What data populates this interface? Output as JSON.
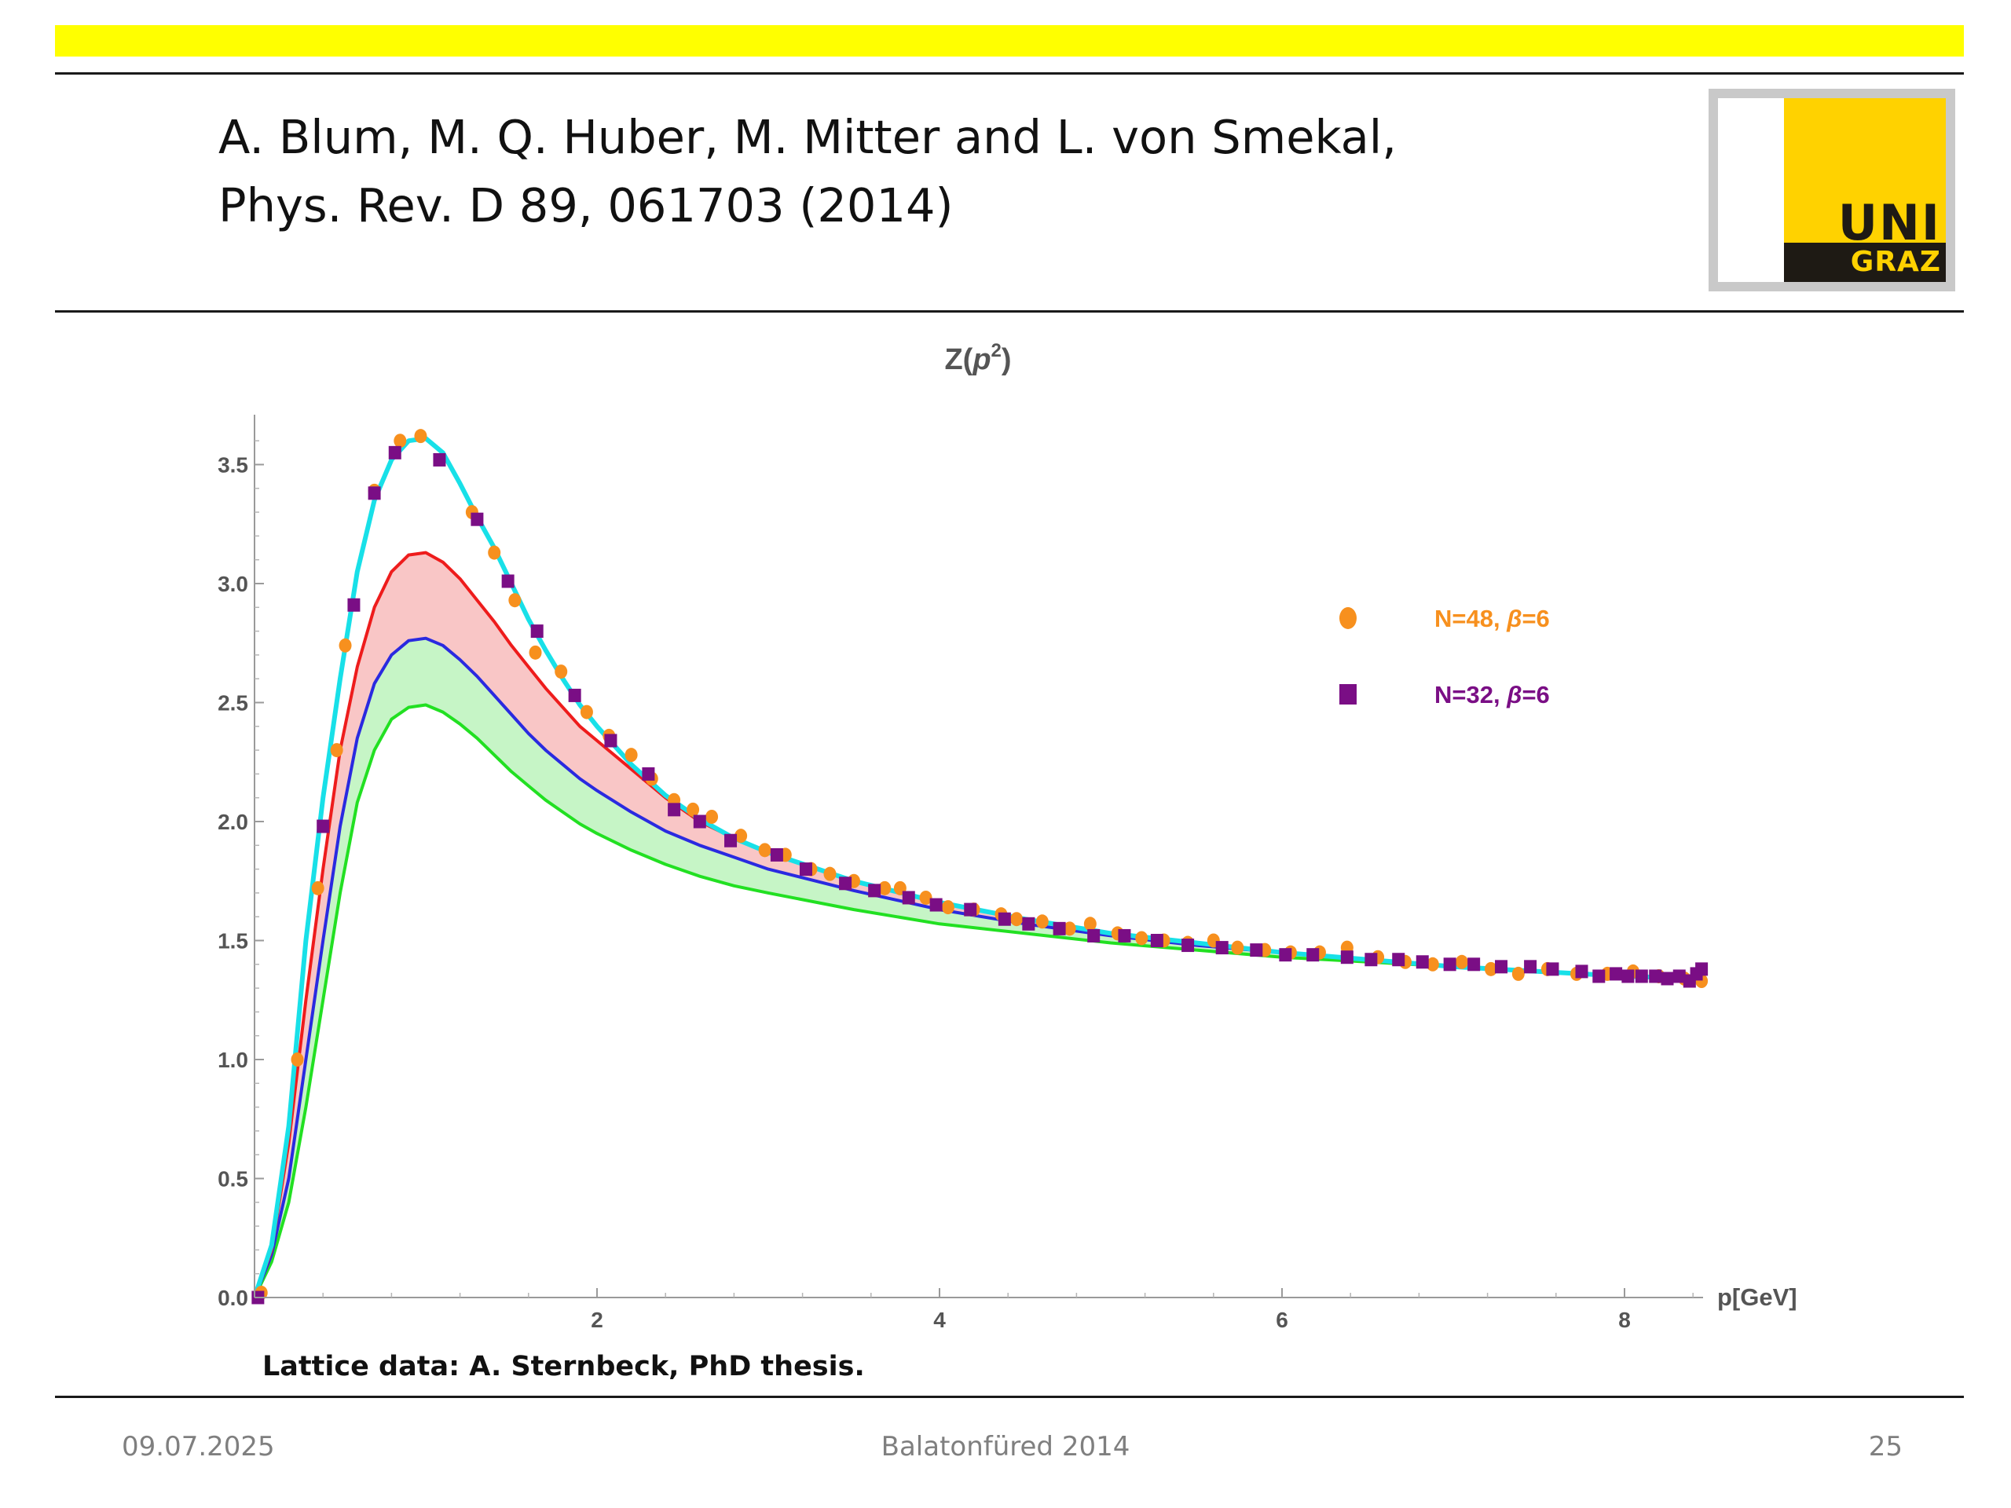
{
  "slide": {
    "reference_line1": "A.  Blum, M. Q. Huber, M. Mitter and L. von Smekal,",
    "reference_line2": "Phys. Rev. D 89, 061703 (2014)",
    "logo": {
      "top": "UNI",
      "bottom": "GRAZ"
    },
    "note": "Lattice data: A. Sternbeck, PhD thesis.",
    "footer_date": "09.07.2025",
    "footer_center": "Balatonfüred 2014",
    "footer_page": "25"
  },
  "colors": {
    "band_upper_fill": "#f9c6c6",
    "band_lower_fill": "#c6f5c6",
    "red": "#ee1c1c",
    "blue": "#2a2ae0",
    "green": "#22e022",
    "cyan": "#18e0e8",
    "orange": "#f7901e",
    "purple": "#7a0e85"
  },
  "chart_data": {
    "type": "line",
    "title": "Z(p²)",
    "title_parts": {
      "main": "Z(",
      "var": "p",
      "sup": "2",
      "close": ")"
    },
    "xlabel": "p[GeV]",
    "ylabel": "",
    "xlim": [
      0,
      8.45
    ],
    "ylim": [
      0,
      3.7
    ],
    "x_ticks": [
      2,
      4,
      6,
      8
    ],
    "y_ticks": [
      0.0,
      0.5,
      1.0,
      1.5,
      2.0,
      2.5,
      3.0,
      3.5
    ],
    "y_tick_labels": [
      "0.0",
      "0.5",
      "1.0",
      "1.5",
      "2.0",
      "2.5",
      "3.0",
      "3.5"
    ],
    "grid": false,
    "legend_position": "top-right",
    "series": [
      {
        "name": "N=48, β=6",
        "legend_main": "N=48, ",
        "legend_beta": "β",
        "legend_rest": "=6",
        "kind": "points",
        "marker": "circle",
        "points": [
          [
            0.04,
            0.02
          ],
          [
            0.25,
            1.0
          ],
          [
            0.37,
            1.72
          ],
          [
            0.48,
            2.3
          ],
          [
            0.53,
            2.74
          ],
          [
            0.7,
            3.39
          ],
          [
            0.85,
            3.6
          ],
          [
            0.97,
            3.62
          ],
          [
            1.27,
            3.3
          ],
          [
            1.4,
            3.13
          ],
          [
            1.52,
            2.93
          ],
          [
            1.64,
            2.71
          ],
          [
            1.79,
            2.63
          ],
          [
            1.94,
            2.46
          ],
          [
            2.07,
            2.36
          ],
          [
            2.2,
            2.28
          ],
          [
            2.32,
            2.18
          ],
          [
            2.45,
            2.09
          ],
          [
            2.56,
            2.05
          ],
          [
            2.67,
            2.02
          ],
          [
            2.84,
            1.94
          ],
          [
            2.98,
            1.88
          ],
          [
            3.1,
            1.86
          ],
          [
            3.25,
            1.8
          ],
          [
            3.36,
            1.78
          ],
          [
            3.5,
            1.75
          ],
          [
            3.68,
            1.72
          ],
          [
            3.77,
            1.72
          ],
          [
            3.92,
            1.68
          ],
          [
            4.05,
            1.64
          ],
          [
            4.2,
            1.63
          ],
          [
            4.36,
            1.61
          ],
          [
            4.45,
            1.59
          ],
          [
            4.6,
            1.58
          ],
          [
            4.76,
            1.55
          ],
          [
            4.88,
            1.57
          ],
          [
            5.04,
            1.53
          ],
          [
            5.18,
            1.51
          ],
          [
            5.31,
            1.5
          ],
          [
            5.45,
            1.49
          ],
          [
            5.6,
            1.5
          ],
          [
            5.74,
            1.47
          ],
          [
            5.9,
            1.46
          ],
          [
            6.05,
            1.45
          ],
          [
            6.22,
            1.45
          ],
          [
            6.38,
            1.47
          ],
          [
            6.56,
            1.43
          ],
          [
            6.72,
            1.41
          ],
          [
            6.88,
            1.4
          ],
          [
            7.05,
            1.41
          ],
          [
            7.22,
            1.38
          ],
          [
            7.38,
            1.36
          ],
          [
            7.55,
            1.38
          ],
          [
            7.72,
            1.36
          ],
          [
            7.9,
            1.36
          ],
          [
            8.05,
            1.37
          ],
          [
            8.2,
            1.35
          ],
          [
            8.35,
            1.34
          ],
          [
            8.45,
            1.33
          ]
        ]
      },
      {
        "name": "N=32, β=6",
        "legend_main": "N=32, ",
        "legend_beta": "β",
        "legend_rest": "=6",
        "kind": "points",
        "marker": "square",
        "points": [
          [
            0.02,
            0.0
          ],
          [
            0.4,
            1.98
          ],
          [
            0.58,
            2.91
          ],
          [
            0.7,
            3.38
          ],
          [
            0.82,
            3.55
          ],
          [
            1.08,
            3.52
          ],
          [
            1.3,
            3.27
          ],
          [
            1.48,
            3.01
          ],
          [
            1.65,
            2.8
          ],
          [
            1.87,
            2.53
          ],
          [
            2.08,
            2.34
          ],
          [
            2.3,
            2.2
          ],
          [
            2.45,
            2.05
          ],
          [
            2.6,
            2.0
          ],
          [
            2.78,
            1.92
          ],
          [
            3.05,
            1.86
          ],
          [
            3.22,
            1.8
          ],
          [
            3.45,
            1.74
          ],
          [
            3.62,
            1.71
          ],
          [
            3.82,
            1.68
          ],
          [
            3.98,
            1.65
          ],
          [
            4.18,
            1.63
          ],
          [
            4.38,
            1.59
          ],
          [
            4.52,
            1.57
          ],
          [
            4.7,
            1.55
          ],
          [
            4.9,
            1.52
          ],
          [
            5.08,
            1.52
          ],
          [
            5.27,
            1.5
          ],
          [
            5.45,
            1.48
          ],
          [
            5.65,
            1.47
          ],
          [
            5.85,
            1.46
          ],
          [
            6.02,
            1.44
          ],
          [
            6.18,
            1.44
          ],
          [
            6.38,
            1.43
          ],
          [
            6.52,
            1.42
          ],
          [
            6.68,
            1.42
          ],
          [
            6.82,
            1.41
          ],
          [
            6.98,
            1.4
          ],
          [
            7.12,
            1.4
          ],
          [
            7.28,
            1.39
          ],
          [
            7.45,
            1.39
          ],
          [
            7.58,
            1.38
          ],
          [
            7.75,
            1.37
          ],
          [
            7.85,
            1.35
          ],
          [
            7.95,
            1.36
          ],
          [
            8.02,
            1.35
          ],
          [
            8.1,
            1.35
          ],
          [
            8.18,
            1.35
          ],
          [
            8.25,
            1.34
          ],
          [
            8.32,
            1.35
          ],
          [
            8.38,
            1.33
          ],
          [
            8.42,
            1.36
          ],
          [
            8.45,
            1.38
          ]
        ]
      },
      {
        "name": "cyan",
        "kind": "curve",
        "points": [
          [
            0,
            0
          ],
          [
            0.1,
            0.22
          ],
          [
            0.2,
            0.72
          ],
          [
            0.3,
            1.5
          ],
          [
            0.4,
            2.1
          ],
          [
            0.5,
            2.6
          ],
          [
            0.6,
            3.05
          ],
          [
            0.7,
            3.35
          ],
          [
            0.8,
            3.52
          ],
          [
            0.9,
            3.6
          ],
          [
            1.0,
            3.61
          ],
          [
            1.1,
            3.55
          ],
          [
            1.2,
            3.42
          ],
          [
            1.3,
            3.28
          ],
          [
            1.4,
            3.15
          ],
          [
            1.5,
            3.0
          ],
          [
            1.6,
            2.85
          ],
          [
            1.7,
            2.72
          ],
          [
            1.8,
            2.6
          ],
          [
            1.9,
            2.49
          ],
          [
            2.0,
            2.4
          ],
          [
            2.2,
            2.24
          ],
          [
            2.4,
            2.11
          ],
          [
            2.6,
            2.01
          ],
          [
            2.8,
            1.93
          ],
          [
            3.0,
            1.87
          ],
          [
            3.5,
            1.75
          ],
          [
            4.0,
            1.66
          ],
          [
            4.5,
            1.59
          ],
          [
            5.0,
            1.53
          ],
          [
            5.5,
            1.49
          ],
          [
            6.0,
            1.45
          ],
          [
            6.5,
            1.42
          ],
          [
            7.0,
            1.39
          ],
          [
            7.5,
            1.37
          ],
          [
            8.0,
            1.35
          ],
          [
            8.45,
            1.34
          ]
        ]
      },
      {
        "name": "red",
        "kind": "curve",
        "points": [
          [
            0,
            0
          ],
          [
            0.1,
            0.2
          ],
          [
            0.2,
            0.65
          ],
          [
            0.3,
            1.25
          ],
          [
            0.4,
            1.8
          ],
          [
            0.5,
            2.3
          ],
          [
            0.6,
            2.65
          ],
          [
            0.7,
            2.9
          ],
          [
            0.8,
            3.05
          ],
          [
            0.9,
            3.12
          ],
          [
            1.0,
            3.13
          ],
          [
            1.1,
            3.09
          ],
          [
            1.2,
            3.02
          ],
          [
            1.3,
            2.93
          ],
          [
            1.4,
            2.84
          ],
          [
            1.5,
            2.74
          ],
          [
            1.6,
            2.65
          ],
          [
            1.7,
            2.56
          ],
          [
            1.8,
            2.48
          ],
          [
            1.9,
            2.4
          ],
          [
            2.0,
            2.34
          ],
          [
            2.2,
            2.22
          ],
          [
            2.4,
            2.1
          ],
          [
            2.6,
            2.0
          ],
          [
            2.8,
            1.93
          ],
          [
            3.0,
            1.87
          ],
          [
            3.5,
            1.75
          ],
          [
            4.0,
            1.66
          ],
          [
            4.5,
            1.59
          ],
          [
            5.0,
            1.53
          ],
          [
            5.5,
            1.49
          ],
          [
            6.0,
            1.45
          ],
          [
            6.5,
            1.42
          ],
          [
            7.0,
            1.39
          ],
          [
            7.5,
            1.37
          ],
          [
            8.0,
            1.35
          ],
          [
            8.45,
            1.34
          ]
        ]
      },
      {
        "name": "blue",
        "kind": "curve",
        "points": [
          [
            0,
            0
          ],
          [
            0.1,
            0.18
          ],
          [
            0.2,
            0.5
          ],
          [
            0.3,
            1.0
          ],
          [
            0.4,
            1.5
          ],
          [
            0.5,
            1.98
          ],
          [
            0.6,
            2.35
          ],
          [
            0.7,
            2.58
          ],
          [
            0.8,
            2.7
          ],
          [
            0.9,
            2.76
          ],
          [
            1.0,
            2.77
          ],
          [
            1.1,
            2.74
          ],
          [
            1.2,
            2.68
          ],
          [
            1.3,
            2.61
          ],
          [
            1.4,
            2.53
          ],
          [
            1.5,
            2.45
          ],
          [
            1.6,
            2.37
          ],
          [
            1.7,
            2.3
          ],
          [
            1.8,
            2.24
          ],
          [
            1.9,
            2.18
          ],
          [
            2.0,
            2.13
          ],
          [
            2.2,
            2.04
          ],
          [
            2.4,
            1.96
          ],
          [
            2.6,
            1.9
          ],
          [
            2.8,
            1.85
          ],
          [
            3.0,
            1.8
          ],
          [
            3.5,
            1.71
          ],
          [
            4.0,
            1.63
          ],
          [
            4.5,
            1.57
          ],
          [
            5.0,
            1.52
          ],
          [
            5.5,
            1.48
          ],
          [
            6.0,
            1.45
          ],
          [
            6.5,
            1.42
          ],
          [
            7.0,
            1.39
          ],
          [
            7.5,
            1.37
          ],
          [
            8.0,
            1.35
          ],
          [
            8.45,
            1.34
          ]
        ]
      },
      {
        "name": "green",
        "kind": "curve",
        "points": [
          [
            0,
            0
          ],
          [
            0.1,
            0.15
          ],
          [
            0.2,
            0.4
          ],
          [
            0.3,
            0.8
          ],
          [
            0.4,
            1.25
          ],
          [
            0.5,
            1.7
          ],
          [
            0.6,
            2.08
          ],
          [
            0.7,
            2.3
          ],
          [
            0.8,
            2.43
          ],
          [
            0.9,
            2.48
          ],
          [
            1.0,
            2.49
          ],
          [
            1.1,
            2.46
          ],
          [
            1.2,
            2.41
          ],
          [
            1.3,
            2.35
          ],
          [
            1.4,
            2.28
          ],
          [
            1.5,
            2.21
          ],
          [
            1.6,
            2.15
          ],
          [
            1.7,
            2.09
          ],
          [
            1.8,
            2.04
          ],
          [
            1.9,
            1.99
          ],
          [
            2.0,
            1.95
          ],
          [
            2.2,
            1.88
          ],
          [
            2.4,
            1.82
          ],
          [
            2.6,
            1.77
          ],
          [
            2.8,
            1.73
          ],
          [
            3.0,
            1.7
          ],
          [
            3.5,
            1.63
          ],
          [
            4.0,
            1.57
          ],
          [
            4.5,
            1.53
          ],
          [
            5.0,
            1.49
          ],
          [
            5.5,
            1.46
          ],
          [
            6.0,
            1.43
          ],
          [
            6.5,
            1.41
          ],
          [
            7.0,
            1.39
          ],
          [
            7.5,
            1.37
          ],
          [
            8.0,
            1.35
          ],
          [
            8.45,
            1.34
          ]
        ]
      }
    ]
  }
}
